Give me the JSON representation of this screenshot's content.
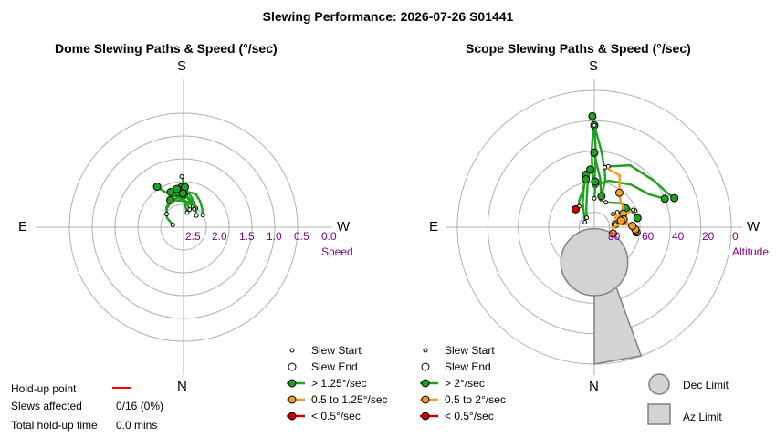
{
  "header": {
    "title": "Slewing Performance: 2026-07-26 S01441"
  },
  "dome": {
    "title": "Dome Slewing Paths & Speed (°/sec)",
    "cardinals": {
      "top": "S",
      "bottom": "N",
      "left": "E",
      "right": "W"
    },
    "radial_label": "Speed",
    "radial_ticks": [
      "2.5",
      "2.0",
      "1.5",
      "1.0",
      "0.5",
      "0.0"
    ]
  },
  "scope": {
    "title": "Scope Slewing Paths & Speed (°/sec)",
    "cardinals": {
      "top": "S",
      "bottom": "N",
      "left": "E",
      "right": "W"
    },
    "radial_label": "Altitude",
    "radial_ticks": [
      "80",
      "60",
      "40",
      "20",
      "0"
    ]
  },
  "legend_dome": {
    "items": [
      {
        "label": "Slew Start",
        "symbol": "small-dot"
      },
      {
        "label": "Slew End",
        "symbol": "open-circle"
      },
      {
        "label": "> 1.25°/sec",
        "symbol": "green-line-dot"
      },
      {
        "label": "0.5 to 1.25°/sec",
        "symbol": "orange-line-dot"
      },
      {
        "label": "< 0.5°/sec",
        "symbol": "red-line-dot"
      }
    ]
  },
  "legend_scope": {
    "items": [
      {
        "label": "Slew Start",
        "symbol": "small-dot"
      },
      {
        "label": "Slew End",
        "symbol": "open-circle"
      },
      {
        "label": "> 2°/sec",
        "symbol": "green-line-dot"
      },
      {
        "label": "0.5 to 2°/sec",
        "symbol": "orange-line-dot"
      },
      {
        "label": "< 0.5°/sec",
        "symbol": "red-line-dot"
      }
    ]
  },
  "limits_legend": {
    "dec_label": "Dec Limit",
    "az_label": "Az Limit"
  },
  "holdup": {
    "point_label": "Hold-up point",
    "affected_label": "Slews affected",
    "affected_value": "0/16 (0%)",
    "total_label": "Total hold-up time",
    "total_value": "0.0 mins"
  },
  "colors": {
    "fast": "#22a022",
    "medium": "#f0a020",
    "slow": "#d00000",
    "holdup": "#ff0000",
    "grid": "#b0b0b0",
    "tick_text": "#800080",
    "limit_fill": "#d3d3d3"
  },
  "chart_data": [
    {
      "type": "scatter",
      "projection": "polar",
      "title": "Dome Slewing Paths & Speed (°/sec)",
      "radial_axis": {
        "label": "Speed",
        "range": [
          3.0,
          0.0
        ],
        "ticks": [
          2.5,
          2.0,
          1.5,
          1.0,
          0.5,
          0.0
        ]
      },
      "angle_axis": {
        "unit": "azimuth_deg",
        "labels": {
          "0": "N",
          "90": "E",
          "180": "S",
          "270": "W"
        }
      },
      "series": [
        {
          "name": "> 1.25°/sec",
          "paths": [
            [
              [
                205,
                2.5
              ],
              [
                190,
                2.44
              ],
              [
                172,
                2.36
              ],
              [
                162,
                2.26
              ],
              [
                152,
                2.12
              ],
              [
                147,
                1.94
              ]
            ],
            [
              [
                213,
                2.5
              ],
              [
                200,
                2.4
              ],
              [
                184,
                2.3
              ],
              [
                168,
                2.28
              ],
              [
                160,
                2.18
              ]
            ],
            [
              [
                238,
                2.5
              ],
              [
                225,
                2.42
              ],
              [
                212,
                2.32
              ],
              [
                200,
                2.22
              ],
              [
                184,
                2.22
              ],
              [
                171,
                2.23
              ]
            ],
            [
              [
                228,
                2.62
              ],
              [
                215,
                2.52
              ],
              [
                203,
                2.4
              ],
              [
                194,
                2.31
              ],
              [
                184,
                2.18
              ],
              [
                177,
                2.12
              ]
            ],
            [
              [
                102,
                2.76
              ],
              [
                120,
                2.58
              ],
              [
                138,
                2.45
              ],
              [
                154,
                2.38
              ],
              [
                165,
                2.35
              ],
              [
                181,
                2.29
              ]
            ],
            [
              [
                128,
                2.53
              ],
              [
                140,
                2.42
              ],
              [
                155,
                2.34
              ],
              [
                166,
                2.26
              ],
              [
                176,
                2.19
              ]
            ],
            [
              [
                194,
                2.67
              ],
              [
                186,
                2.56
              ],
              [
                181,
                2.4
              ],
              [
                176,
                2.26
              ],
              [
                170,
                2.15
              ]
            ],
            [
              [
                178,
                1.89
              ],
              [
                179,
                1.95
              ],
              [
                180,
                2.05
              ],
              [
                182,
                2.12
              ]
            ],
            [
              [
                199,
                2.59
              ],
              [
                190,
                2.5
              ],
              [
                178,
                2.42
              ],
              [
                162,
                2.38
              ],
              [
                154,
                2.34
              ]
            ],
            [
              [
                211,
                2.54
              ],
              [
                204,
                2.47
              ],
              [
                195,
                2.42
              ],
              [
                186,
                2.33
              ],
              [
                179,
                2.26
              ]
            ]
          ]
        }
      ]
    },
    {
      "type": "scatter",
      "projection": "polar",
      "title": "Scope Slewing Paths & Speed (°/sec)",
      "radial_axis": {
        "label": "Altitude",
        "range": [
          90,
          0
        ],
        "ticks": [
          80,
          60,
          40,
          20,
          0
        ]
      },
      "angle_axis": {
        "unit": "azimuth_deg",
        "labels": {
          "0": "N",
          "90": "E",
          "180": "S",
          "270": "W"
        }
      },
      "limits": {
        "dec_limit": {
          "az": 0,
          "alt": 67,
          "radius_alt": 22
        },
        "az_limit": {
          "az_min": 340,
          "az_max": 360,
          "alt_max": 52
        }
      },
      "series": [
        {
          "name": "> 2°/sec",
          "paths": [
            [
              [
                180,
                60
              ],
              [
                181,
                49
              ],
              [
                181,
                38
              ],
              [
                180,
                24
              ],
              [
                179,
                17
              ]
            ],
            [
              [
                181,
                63
              ],
              [
                178,
                55
              ],
              [
                178,
                40
              ],
              [
                179,
                30
              ],
              [
                180,
                23
              ]
            ],
            [
              [
                193,
                49
              ],
              [
                210,
                43
              ],
              [
                233,
                40
              ],
              [
                245,
                37
              ],
              [
                250,
                34
              ]
            ],
            [
              [
                183,
                62
              ],
              [
                197,
                58
              ],
              [
                221,
                53
              ],
              [
                239,
                48
              ],
              [
                248,
                40
              ]
            ],
            [
              [
                194,
                71
              ],
              [
                187,
                58
              ],
              [
                182,
                48
              ],
              [
                180,
                41
              ]
            ],
            [
              [
                118,
                83
              ],
              [
                155,
                72
              ],
              [
                166,
                62
              ],
              [
                171,
                55
              ]
            ],
            [
              [
                141,
                82
              ],
              [
                158,
                76
              ],
              [
                168,
                67
              ],
              [
                172,
                59
              ],
              [
                176,
                52
              ]
            ],
            [
              [
                205,
                72
              ],
              [
                229,
                66
              ],
              [
                241,
                64
              ],
              [
                258,
                61
              ]
            ],
            [
              [
                248,
                61
              ],
              [
                244,
                64
              ],
              [
                239,
                66
              ]
            ],
            [
              [
                180,
                23
              ],
              [
                185,
                39
              ],
              [
                190,
                51
              ],
              [
                193,
                58
              ],
              [
                193,
                69
              ]
            ],
            [
              [
                144,
                73
              ],
              [
                150,
                70
              ],
              [
                162,
                65
              ],
              [
                170,
                58
              ]
            ],
            [
              [
                180,
                71
              ],
              [
                181,
                66
              ],
              [
                181,
                60
              ]
            ]
          ]
        },
        {
          "name": "0.5 to 2°/sec",
          "paths": [
            [
              [
                216,
                62
              ],
              [
                226,
                66
              ],
              [
                235,
                67
              ],
              [
                245,
                69
              ]
            ],
            [
              [
                246,
                62
              ],
              [
                247,
                70
              ],
              [
                262,
                76
              ]
            ],
            [
              [
                262,
                76
              ],
              [
                266,
                66
              ],
              [
                277,
                62
              ]
            ],
            [
              [
                277,
                62
              ],
              [
                273,
                63
              ]
            ],
            [
              [
                261,
                71
              ],
              [
                263,
                68
              ],
              [
                268,
                65
              ]
            ],
            [
              [
                235,
                75
              ],
              [
                245,
                73
              ],
              [
                255,
                70
              ]
            ],
            [
              [
                190,
                50
              ],
              [
                206,
                52
              ],
              [
                216,
                62
              ]
            ],
            [
              [
                261,
                71
              ],
              [
                272,
                78
              ],
              [
                289,
                77
              ]
            ],
            [
              [
                237,
                72
              ],
              [
                246,
                75
              ],
              [
                256,
                72
              ]
            ]
          ]
        },
        {
          "name": "< 0.5°/sec",
          "paths": [
            [
              [
                133,
                73
              ],
              [
                134,
                73
              ]
            ]
          ]
        }
      ]
    }
  ]
}
